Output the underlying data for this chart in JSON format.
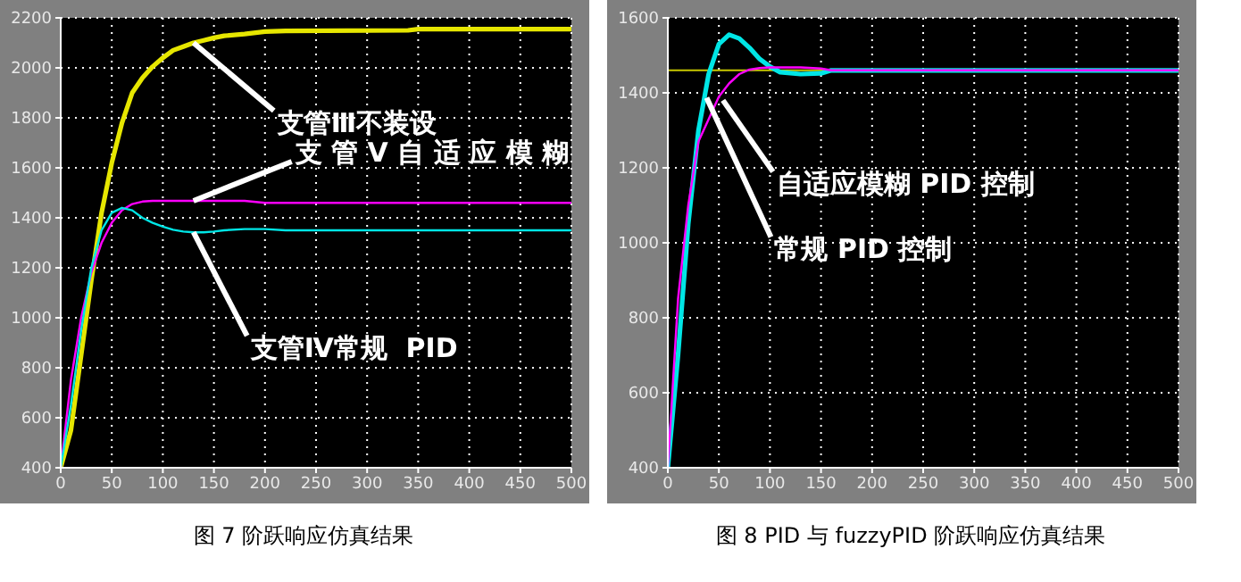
{
  "chart_data": [
    {
      "type": "line",
      "title": "图 7 阶跃响应仿真结果",
      "x": [
        0,
        10,
        20,
        30,
        40,
        50,
        60,
        70,
        80,
        90,
        100,
        110,
        120,
        130,
        140,
        150,
        160,
        180,
        200,
        220,
        340,
        350,
        500
      ],
      "xlim": [
        0,
        500
      ],
      "xticks": [
        0,
        50,
        100,
        150,
        200,
        250,
        300,
        350,
        400,
        450,
        500
      ],
      "ylim": [
        400,
        2200
      ],
      "yticks": [
        400,
        600,
        800,
        1000,
        1200,
        1400,
        1600,
        1800,
        2000,
        2200
      ],
      "grid": true,
      "line_style": "solid",
      "marker": "none",
      "series": [
        {
          "color": "#e6e600",
          "values": [
            400,
            550,
            850,
            1150,
            1420,
            1620,
            1780,
            1900,
            1960,
            2005,
            2040,
            2070,
            2085,
            2100,
            2110,
            2120,
            2128,
            2135,
            2145,
            2148,
            2150,
            2155,
            2155
          ]
        },
        {
          "color": "#ff00ff",
          "values": [
            400,
            750,
            1000,
            1180,
            1300,
            1380,
            1430,
            1455,
            1465,
            1468,
            1468,
            1468,
            1468,
            1468,
            1468,
            1468,
            1468,
            1468,
            1460,
            1460,
            1460,
            1460,
            1460
          ]
        },
        {
          "color": "#00e6e6",
          "values": [
            400,
            650,
            950,
            1200,
            1350,
            1420,
            1440,
            1430,
            1400,
            1380,
            1365,
            1352,
            1345,
            1342,
            1342,
            1345,
            1350,
            1355,
            1355,
            1350,
            1350,
            1350,
            1350
          ]
        }
      ],
      "annotations": [
        {
          "text": "支管Ⅲ不装设",
          "x": 130,
          "y": 2100
        },
        {
          "text": "支 管 Ⅴ 自 适 应 模 糊",
          "x": 130,
          "y": 1468
        },
        {
          "text": "支管Ⅳ常规  PID",
          "x": 130,
          "y": 1342
        }
      ]
    },
    {
      "type": "line",
      "title": "图 8 PID 与 fuzzyPID 阶跃响应仿真结果",
      "x": [
        0,
        10,
        20,
        30,
        40,
        50,
        60,
        70,
        80,
        90,
        100,
        110,
        130,
        150,
        160,
        500
      ],
      "xlim": [
        0,
        500
      ],
      "xticks": [
        0,
        50,
        100,
        150,
        200,
        250,
        300,
        350,
        400,
        450,
        500
      ],
      "ylim": [
        400,
        1600
      ],
      "yticks": [
        400,
        600,
        800,
        1000,
        1200,
        1400,
        1600
      ],
      "grid": true,
      "line_style": "solid",
      "marker": "none",
      "series": [
        {
          "color": "#00e6e6",
          "values": [
            400,
            700,
            1050,
            1300,
            1450,
            1530,
            1555,
            1545,
            1520,
            1490,
            1470,
            1455,
            1450,
            1452,
            1460,
            1460
          ]
        },
        {
          "color": "#ff00ff",
          "values": [
            400,
            850,
            1100,
            1270,
            1330,
            1390,
            1425,
            1450,
            1462,
            1466,
            1468,
            1468,
            1468,
            1465,
            1460,
            1460
          ]
        }
      ],
      "ref_lines": [
        {
          "axis": "y",
          "value": 1460,
          "color": "#c8c800"
        }
      ],
      "annotations": [
        {
          "text": "自适应模糊 PID 控制",
          "x": 54,
          "y": 1380
        },
        {
          "text": "常规 PID 控制",
          "x": 38,
          "y": 1387
        }
      ]
    }
  ]
}
